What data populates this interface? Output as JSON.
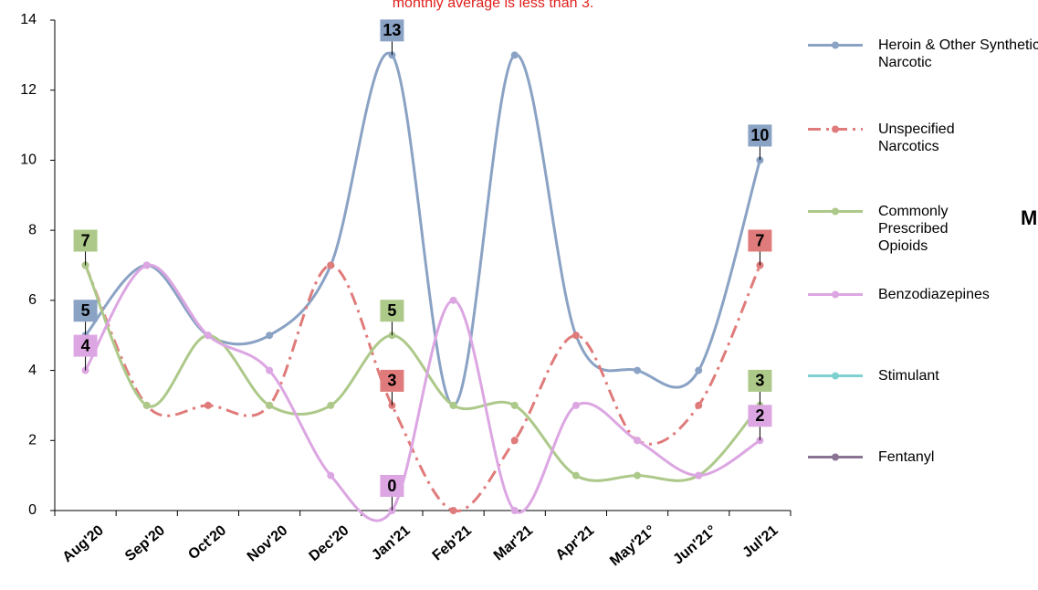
{
  "chart_data": {
    "type": "line",
    "note": "monthly average is less than 3.",
    "side_text": "M",
    "categories": [
      "Aug'20",
      "Sep'20",
      "Oct'20",
      "Nov'20",
      "Dec'20",
      "Jan'21",
      "Feb'21",
      "Mar'21",
      "Apr'21",
      "May'21°",
      "Jun'21°",
      "Jul'21"
    ],
    "ylim": [
      0,
      14
    ],
    "yticks": [
      0,
      2,
      4,
      6,
      8,
      10,
      12,
      14
    ],
    "series": [
      {
        "name": "Heroin & Other Synthetic Narcotic",
        "color": "#8aa2c4",
        "dash": "solid",
        "values": [
          5,
          7,
          5,
          5,
          7,
          13,
          3,
          13,
          5,
          4,
          4,
          10
        ],
        "value_labels": [
          5,
          null,
          null,
          null,
          null,
          13,
          null,
          null,
          null,
          null,
          null,
          10
        ]
      },
      {
        "name": "Unspecified Narcotics",
        "color": "#e07b7b",
        "dash": "dashdot",
        "values": [
          7,
          3,
          3,
          3,
          7,
          3,
          0,
          2,
          5,
          2,
          3,
          7
        ],
        "value_labels": [
          null,
          null,
          null,
          null,
          null,
          3,
          null,
          null,
          null,
          null,
          null,
          7
        ]
      },
      {
        "name": "Commonly Prescribed Opioids",
        "color": "#adc98a",
        "dash": "solid",
        "values": [
          7,
          3,
          5,
          3,
          3,
          5,
          3,
          3,
          1,
          1,
          1,
          3
        ],
        "value_labels": [
          7,
          null,
          null,
          null,
          null,
          5,
          null,
          null,
          null,
          null,
          null,
          3
        ]
      },
      {
        "name": "Benzodiazepines",
        "color": "#dca6e2",
        "dash": "solid",
        "values": [
          4,
          7,
          5,
          4,
          1,
          0,
          6,
          0,
          3,
          2,
          1,
          2
        ],
        "value_labels": [
          4,
          null,
          null,
          null,
          null,
          0,
          null,
          null,
          null,
          null,
          null,
          2
        ]
      },
      {
        "name": "Stimulant",
        "color": "#7fd1cf",
        "dash": "solid",
        "values": [
          null,
          null,
          null,
          null,
          null,
          null,
          null,
          null,
          null,
          null,
          null,
          null
        ]
      },
      {
        "name": "Fentanyl",
        "color": "#8a7393",
        "dash": "solid",
        "values": [
          null,
          null,
          null,
          null,
          null,
          null,
          null,
          null,
          null,
          null,
          null,
          null
        ]
      }
    ]
  }
}
